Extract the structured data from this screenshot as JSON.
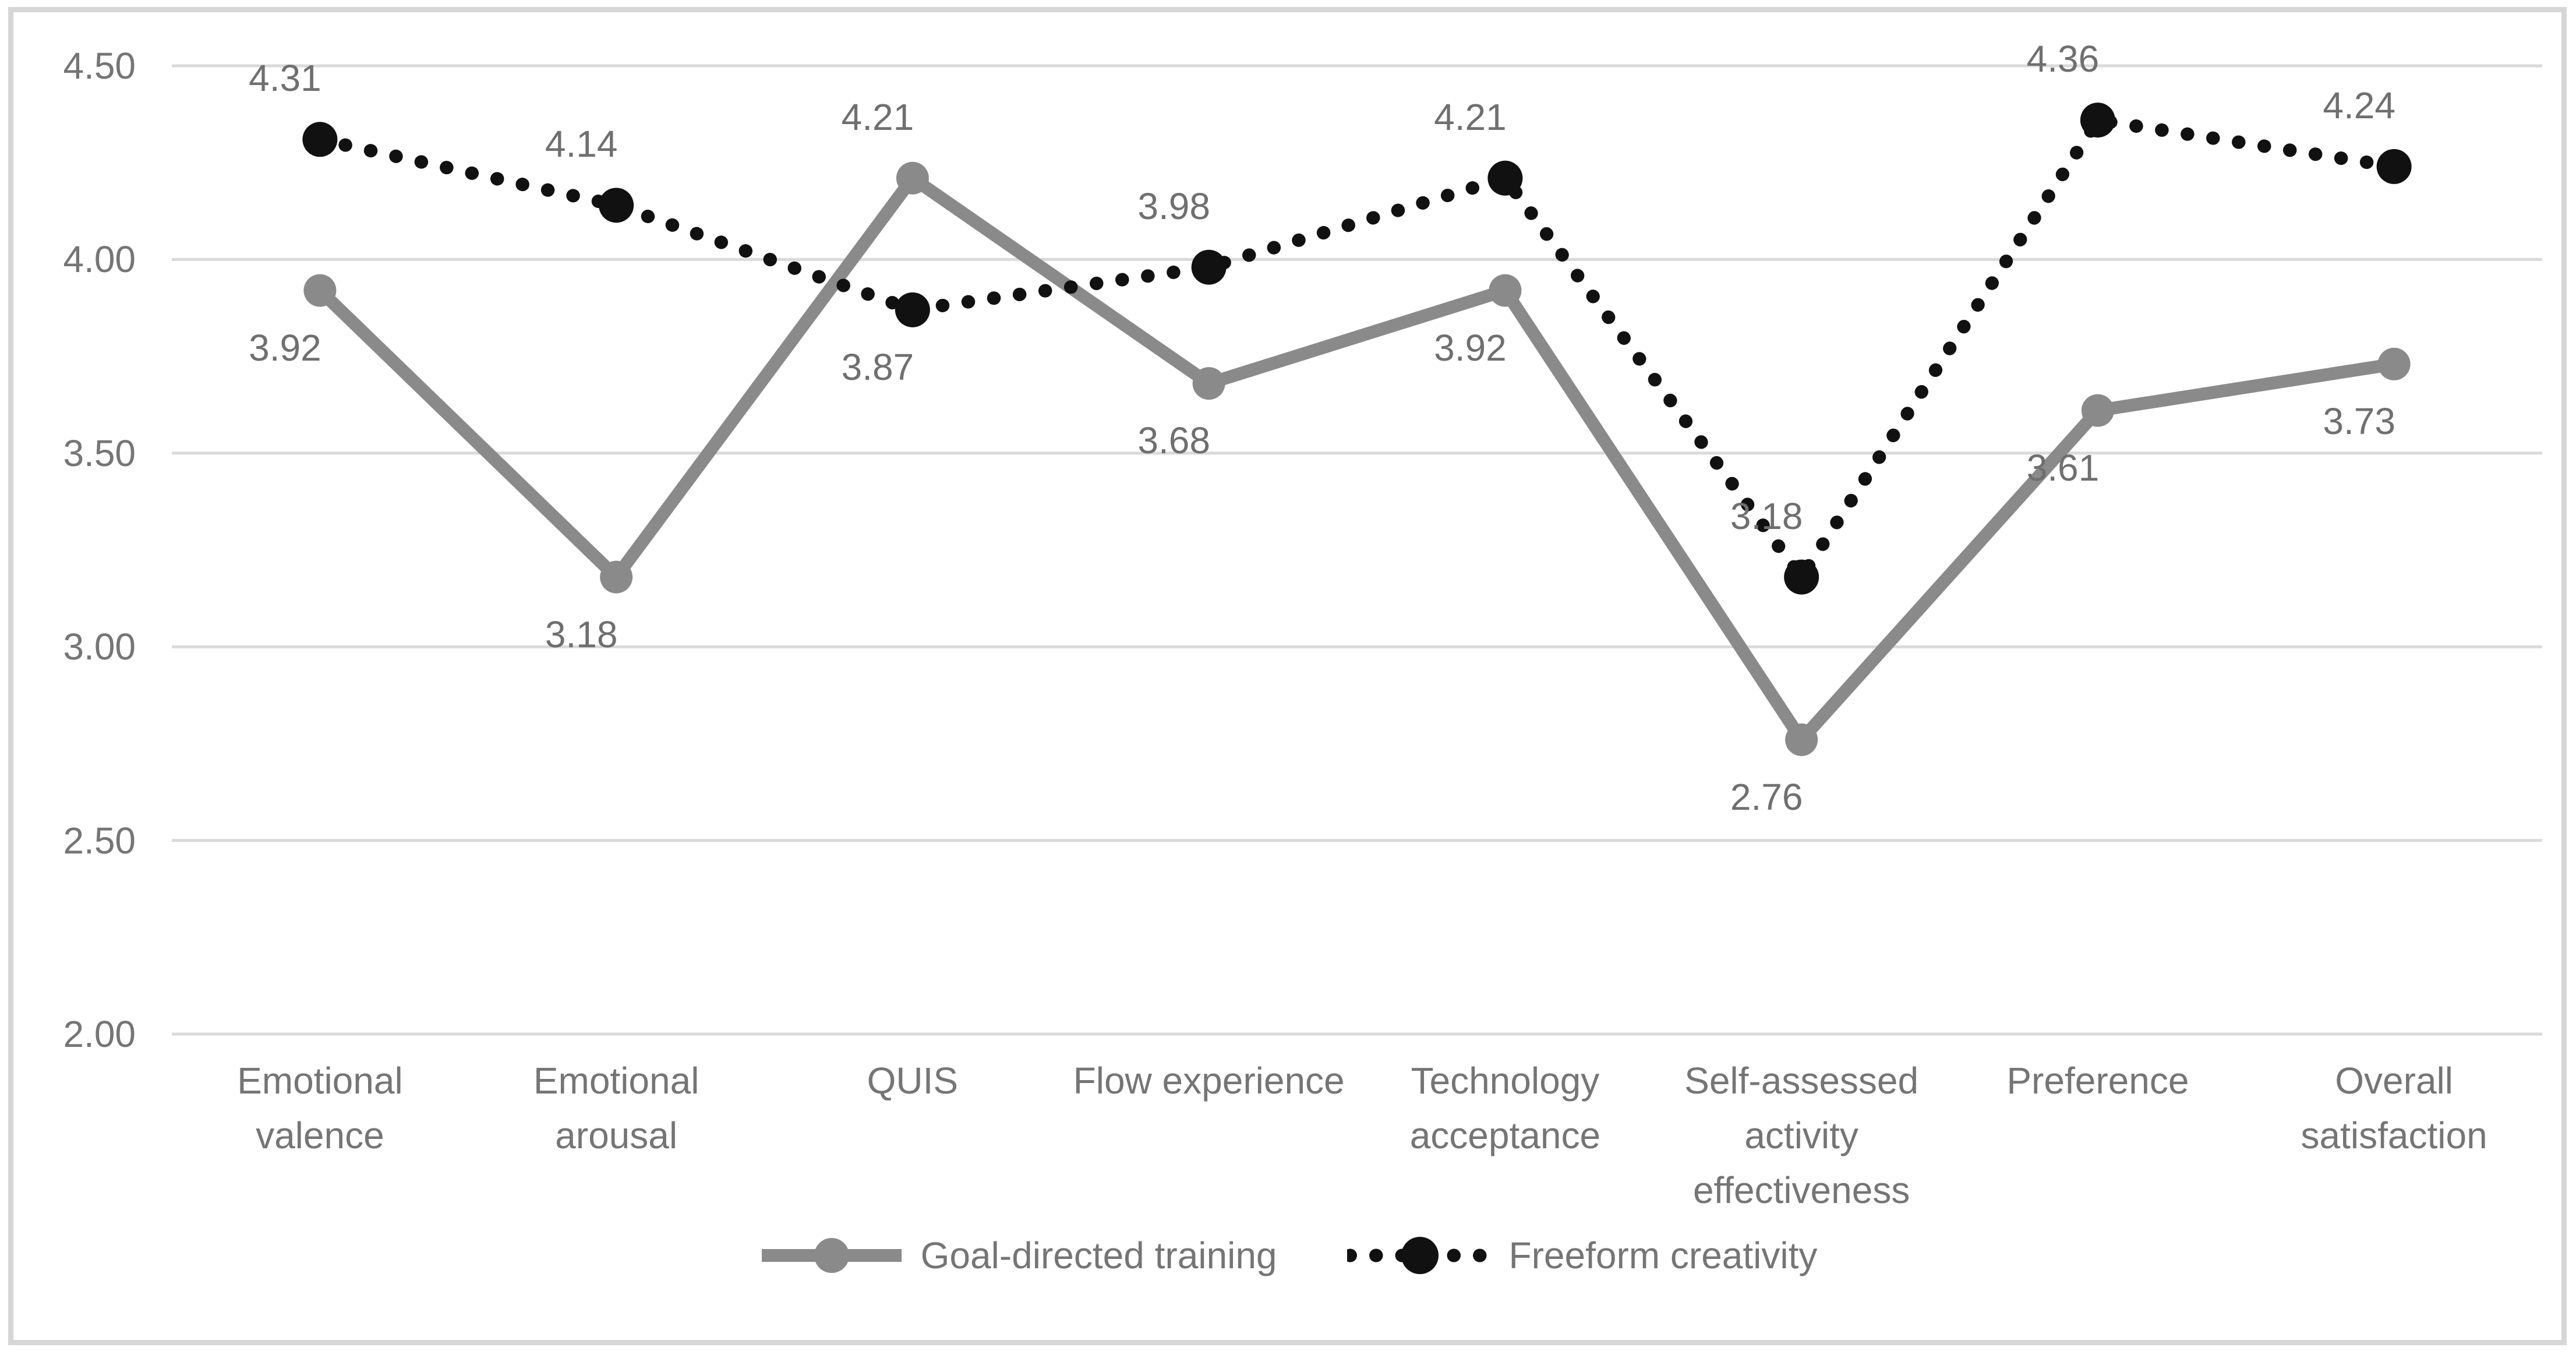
{
  "chart_data": {
    "type": "line",
    "title": "",
    "categories": [
      "Emotional valence",
      "Emotional arousal",
      "QUIS",
      "Flow experience",
      "Technology acceptance",
      "Self-assessed activity effectiveness",
      "Preference",
      "Overall satisfaction"
    ],
    "series": [
      {
        "name": "Goal-directed training",
        "color": "#8a8a8a",
        "line_style": "solid",
        "values": [
          3.92,
          3.18,
          4.21,
          3.68,
          3.92,
          2.76,
          3.61,
          3.73
        ],
        "labels": [
          "3.92",
          "3.18",
          "4.21",
          "3.68",
          "3.92",
          "2.76",
          "3.61",
          "3.73"
        ],
        "label_positions": [
          "below",
          "below",
          "above",
          "below",
          "below",
          "below",
          "below",
          "below"
        ]
      },
      {
        "name": "Freeform creativity",
        "color": "#111111",
        "line_style": "dotted",
        "values": [
          4.31,
          4.14,
          3.87,
          3.98,
          4.21,
          3.18,
          4.36,
          4.24
        ],
        "labels": [
          "4.31",
          "4.14",
          "3.87",
          "3.98",
          "4.21",
          "3.18",
          "4.36",
          "4.24"
        ],
        "label_positions": [
          "above",
          "above",
          "below",
          "above",
          "above",
          "above",
          "above",
          "above"
        ]
      }
    ],
    "y_axis": {
      "min": 2.0,
      "max": 4.5,
      "step": 0.5,
      "tick_labels": [
        "4.50",
        "4.00",
        "3.50",
        "3.00",
        "2.50",
        "2.00"
      ]
    },
    "grid": true,
    "legend_position": "bottom"
  },
  "colors": {
    "background": "#ffffff",
    "frame": "#d6d6d6",
    "gridline": "#dadada",
    "text": "#757575",
    "series_gray": "#8a8a8a",
    "series_black": "#111111"
  }
}
